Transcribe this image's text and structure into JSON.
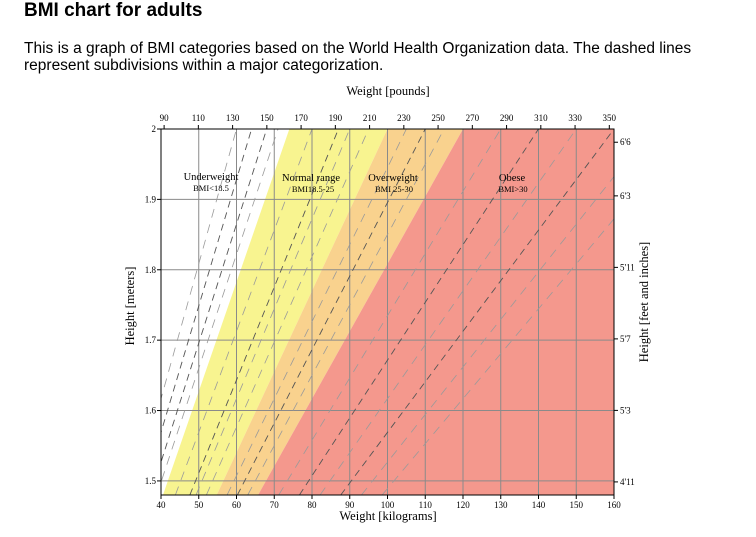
{
  "page": {
    "title": "BMI chart for adults",
    "description": "This is a graph of BMI categories based on the World Health Organization data. The dashed lines represent subdivisions within a major categorization."
  },
  "chart_data": {
    "type": "area",
    "xlabel": "Weight [kilograms]",
    "ylabel": "Height [meters]",
    "x2label": "Weight [pounds]",
    "y2label": "Height [feet and inches]",
    "xlim": [
      40,
      160
    ],
    "ylim": [
      1.48,
      2.0
    ],
    "x_ticks": [
      40,
      50,
      60,
      70,
      80,
      90,
      100,
      110,
      120,
      130,
      140,
      150,
      160
    ],
    "y_ticks": [
      {
        "value": 1.5,
        "label": "1.5"
      },
      {
        "value": 1.6,
        "label": "1.6"
      },
      {
        "value": 1.7,
        "label": "1.7"
      },
      {
        "value": 1.8,
        "label": "1.8"
      },
      {
        "value": 1.9,
        "label": "1.9"
      },
      {
        "value": 2.0,
        "label": "2"
      }
    ],
    "top_ticks": [
      90,
      110,
      130,
      150,
      170,
      190,
      210,
      230,
      250,
      270,
      290,
      310,
      330,
      350
    ],
    "right_ticks": [
      {
        "inches": 59,
        "label": "4'11"
      },
      {
        "inches": 63,
        "label": "5'3"
      },
      {
        "inches": 67,
        "label": "5'7"
      },
      {
        "inches": 71,
        "label": "5'11"
      },
      {
        "inches": 75,
        "label": "6'3"
      },
      {
        "inches": 78,
        "label": "6'6"
      }
    ],
    "grid": true,
    "bands": [
      {
        "name": "Underweight",
        "range_label": "BMI<18.5",
        "bmi_min": 0,
        "bmi_max": 18.5,
        "color": "#ffffff"
      },
      {
        "name": "Normal range",
        "range_label": "BMI18.5-25",
        "bmi_min": 18.5,
        "bmi_max": 25,
        "color": "#f8f490"
      },
      {
        "name": "Overweight",
        "range_label": "BMI 25-30",
        "bmi_min": 25,
        "bmi_max": 30,
        "color": "#f9d28e"
      },
      {
        "name": "Obese",
        "range_label": "BMI>30",
        "bmi_min": 30,
        "bmi_max": 999,
        "color": "#f4988d"
      }
    ],
    "dashed_subdivisions": [
      16,
      17,
      21.75,
      27.5,
      35,
      40
    ],
    "light_dashed_lines": [
      15,
      17.75,
      20,
      22.5,
      23.75,
      26.25,
      28.75,
      32.5,
      37.5,
      42.5,
      45
    ]
  }
}
